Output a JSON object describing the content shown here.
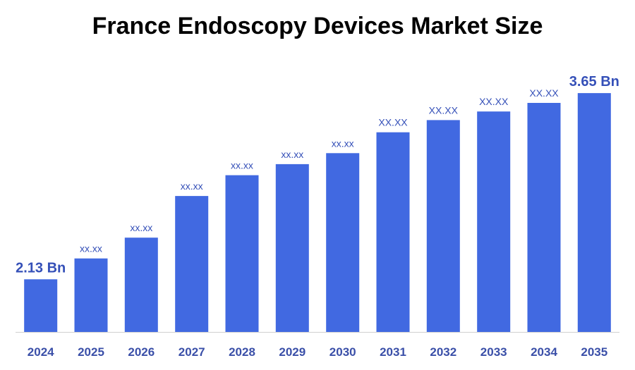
{
  "chart_data": {
    "type": "bar",
    "title": "France Endoscopy Devices Market Size",
    "xlabel": "",
    "ylabel": "",
    "categories": [
      "2024",
      "2025",
      "2026",
      "2027",
      "2028",
      "2029",
      "2030",
      "2031",
      "2032",
      "2033",
      "2034",
      "2035"
    ],
    "values": [
      2.13,
      2.3,
      2.47,
      2.81,
      2.98,
      3.07,
      3.16,
      3.33,
      3.43,
      3.5,
      3.57,
      3.65
    ],
    "data_labels": [
      "2.13 Bn",
      "xx.xx",
      "xx.xx",
      "xx.xx",
      "xx.xx",
      "xx.xx",
      "xx.xx",
      "XX.XX",
      "XX.XX",
      "XX.XX",
      "XX.XX",
      "3.65 Bn"
    ],
    "ylim": [
      1.7,
      3.95
    ],
    "grid": false,
    "legend": "none",
    "bar_color": "#4169e1",
    "label_color": "#3550b8",
    "tick_color": "#3a4fa8",
    "axis_color": "#d0d0d0"
  }
}
